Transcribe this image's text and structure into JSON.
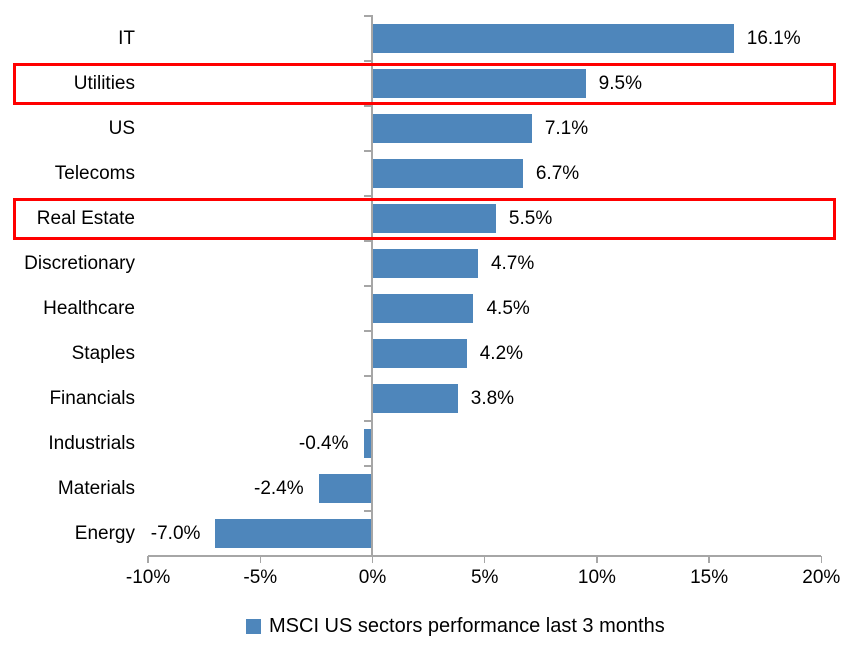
{
  "chart_data": {
    "type": "bar",
    "orientation": "horizontal",
    "title": "",
    "categories": [
      "IT",
      "Utilities",
      "US",
      "Telecoms",
      "Real Estate",
      "Discretionary",
      "Healthcare",
      "Staples",
      "Financials",
      "Industrials",
      "Materials",
      "Energy"
    ],
    "values": [
      16.1,
      9.5,
      7.1,
      6.7,
      5.5,
      4.7,
      4.5,
      4.2,
      3.8,
      -0.4,
      -2.4,
      -7.0
    ],
    "data_labels": [
      "16.1%",
      "9.5%",
      "7.1%",
      "6.7%",
      "5.5%",
      "4.7%",
      "4.5%",
      "4.2%",
      "3.8%",
      "-0.4%",
      "-2.4%",
      "-7.0%"
    ],
    "x_tick_values": [
      -10,
      -5,
      0,
      5,
      10,
      15,
      20
    ],
    "x_tick_labels": [
      "-10%",
      "-5%",
      "0%",
      "5%",
      "10%",
      "15%",
      "20%"
    ],
    "xlim": [
      -10,
      20
    ],
    "grid": false,
    "legend_position": "bottom",
    "legend": "MSCI US sectors performance last 3 months",
    "highlighted_categories": [
      "Utilities",
      "Real Estate"
    ],
    "colors": {
      "bar": "#4E86BB",
      "highlight_box": "#FF0000",
      "axis": "#A6A6A6",
      "text": "#000000"
    }
  }
}
